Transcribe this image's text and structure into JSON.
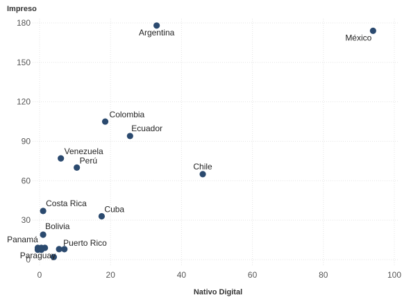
{
  "chart_data": {
    "type": "scatter",
    "xlabel": "Nativo Digital",
    "ylabel": "Impreso",
    "xlim": [
      0,
      100
    ],
    "ylim": [
      0,
      180
    ],
    "xticks": [
      "0",
      "20",
      "40",
      "60",
      "80",
      "100"
    ],
    "yticks": [
      "0",
      "30",
      "60",
      "90",
      "120",
      "150",
      "180"
    ],
    "grid": true,
    "color": "#2b4a6f",
    "points": [
      {
        "x": 33,
        "y": 178,
        "label": "Argentina"
      },
      {
        "x": 94,
        "y": 174,
        "label": "México"
      },
      {
        "x": 18.5,
        "y": 105,
        "label": "Colombia"
      },
      {
        "x": 25.5,
        "y": 94,
        "label": "Ecuador"
      },
      {
        "x": 6,
        "y": 77,
        "label": "Venezuela"
      },
      {
        "x": 10.5,
        "y": 70,
        "label": "Perú"
      },
      {
        "x": 46,
        "y": 65,
        "label": "Chile"
      },
      {
        "x": 1,
        "y": 37,
        "label": "Costa Rica"
      },
      {
        "x": 17.5,
        "y": 33,
        "label": "Cuba"
      },
      {
        "x": 1,
        "y": 19,
        "label": "Bolivia"
      },
      {
        "x": 5.5,
        "y": 8,
        "label": "Puerto Rico"
      },
      {
        "x": 7,
        "y": 8,
        "label": ""
      },
      {
        "x": -0.5,
        "y": 9,
        "label": "Panamá"
      },
      {
        "x": 0.5,
        "y": 9,
        "label": ""
      },
      {
        "x": 1.5,
        "y": 9,
        "label": ""
      },
      {
        "x": -0.5,
        "y": 7.5,
        "label": ""
      },
      {
        "x": 0.5,
        "y": 7.5,
        "label": ""
      },
      {
        "x": 4,
        "y": 2,
        "label": "Paraguay"
      }
    ]
  }
}
